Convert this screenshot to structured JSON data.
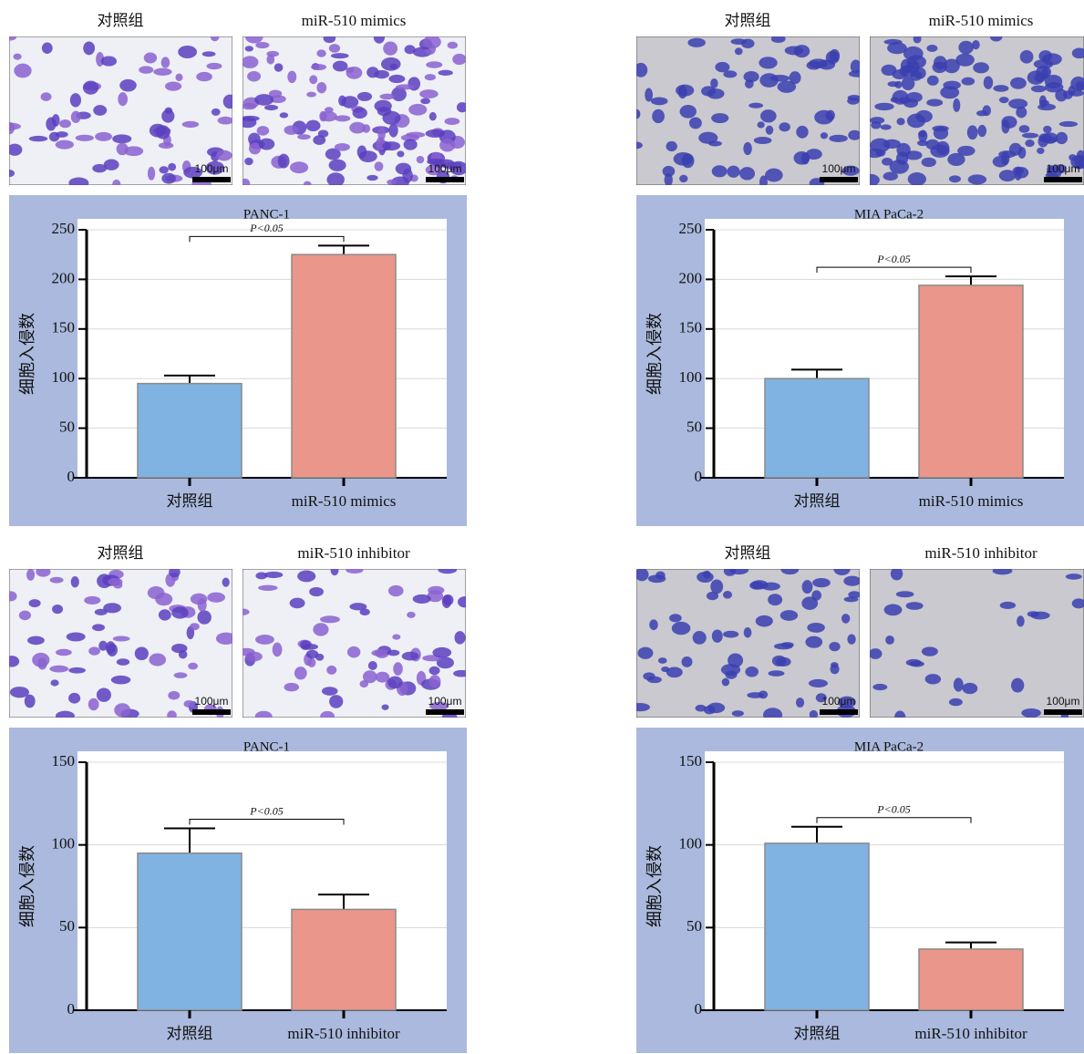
{
  "panels": [
    {
      "image_labels": [
        "对照组",
        "miR-510 mimics"
      ],
      "scale_bars": [
        "100μm",
        "100μm"
      ]
    },
    {
      "image_labels": [
        "对照组",
        "miR-510 mimics"
      ],
      "scale_bars": [
        "100μm",
        "100μm"
      ]
    },
    {
      "image_labels": [
        "对照组",
        "miR-510 inhibitor"
      ],
      "scale_bars": [
        "100μm",
        "100μm"
      ]
    },
    {
      "image_labels": [
        "对照组",
        "miR-510 inhibitor"
      ],
      "scale_bars": [
        "100μm",
        "100μm"
      ]
    }
  ],
  "chart_data": [
    {
      "type": "bar",
      "title": "PANC-1",
      "y_label": "细胞入侵数",
      "categories": [
        "对照组",
        "miR-510 mimics"
      ],
      "values": [
        95,
        225
      ],
      "errors": [
        8,
        9
      ],
      "colors": [
        "#80b3e2",
        "#ea968a"
      ],
      "ylim": [
        0,
        250
      ],
      "yticks": [
        0,
        50,
        100,
        150,
        200,
        250
      ],
      "grid": true,
      "annotation": "P<0.05"
    },
    {
      "type": "bar",
      "title": "MIA PaCa-2",
      "y_label": "细胞入侵数",
      "categories": [
        "对照组",
        "miR-510 mimics"
      ],
      "values": [
        100,
        194
      ],
      "errors": [
        9,
        9
      ],
      "colors": [
        "#80b3e2",
        "#ea968a"
      ],
      "ylim": [
        0,
        250
      ],
      "yticks": [
        0,
        50,
        100,
        150,
        200,
        250
      ],
      "grid": true,
      "annotation": "P<0.05"
    },
    {
      "type": "bar",
      "title": "PANC-1",
      "y_label": "细胞入侵数",
      "categories": [
        "对照组",
        "miR-510 inhibitor"
      ],
      "values": [
        95,
        61
      ],
      "errors": [
        15,
        9
      ],
      "colors": [
        "#80b3e2",
        "#ea968a"
      ],
      "ylim": [
        0,
        150
      ],
      "yticks": [
        0,
        50,
        100,
        150
      ],
      "grid": true,
      "annotation": "P<0.05"
    },
    {
      "type": "bar",
      "title": "MIA PaCa-2",
      "y_label": "细胞入侵数",
      "categories": [
        "对照组",
        "miR-510 inhibitor"
      ],
      "values": [
        101,
        37
      ],
      "errors": [
        10,
        4
      ],
      "colors": [
        "#80b3e2",
        "#ea968a"
      ],
      "ylim": [
        0,
        150
      ],
      "yticks": [
        0,
        50,
        100,
        150
      ],
      "grid": true,
      "annotation": "P<0.05"
    }
  ]
}
